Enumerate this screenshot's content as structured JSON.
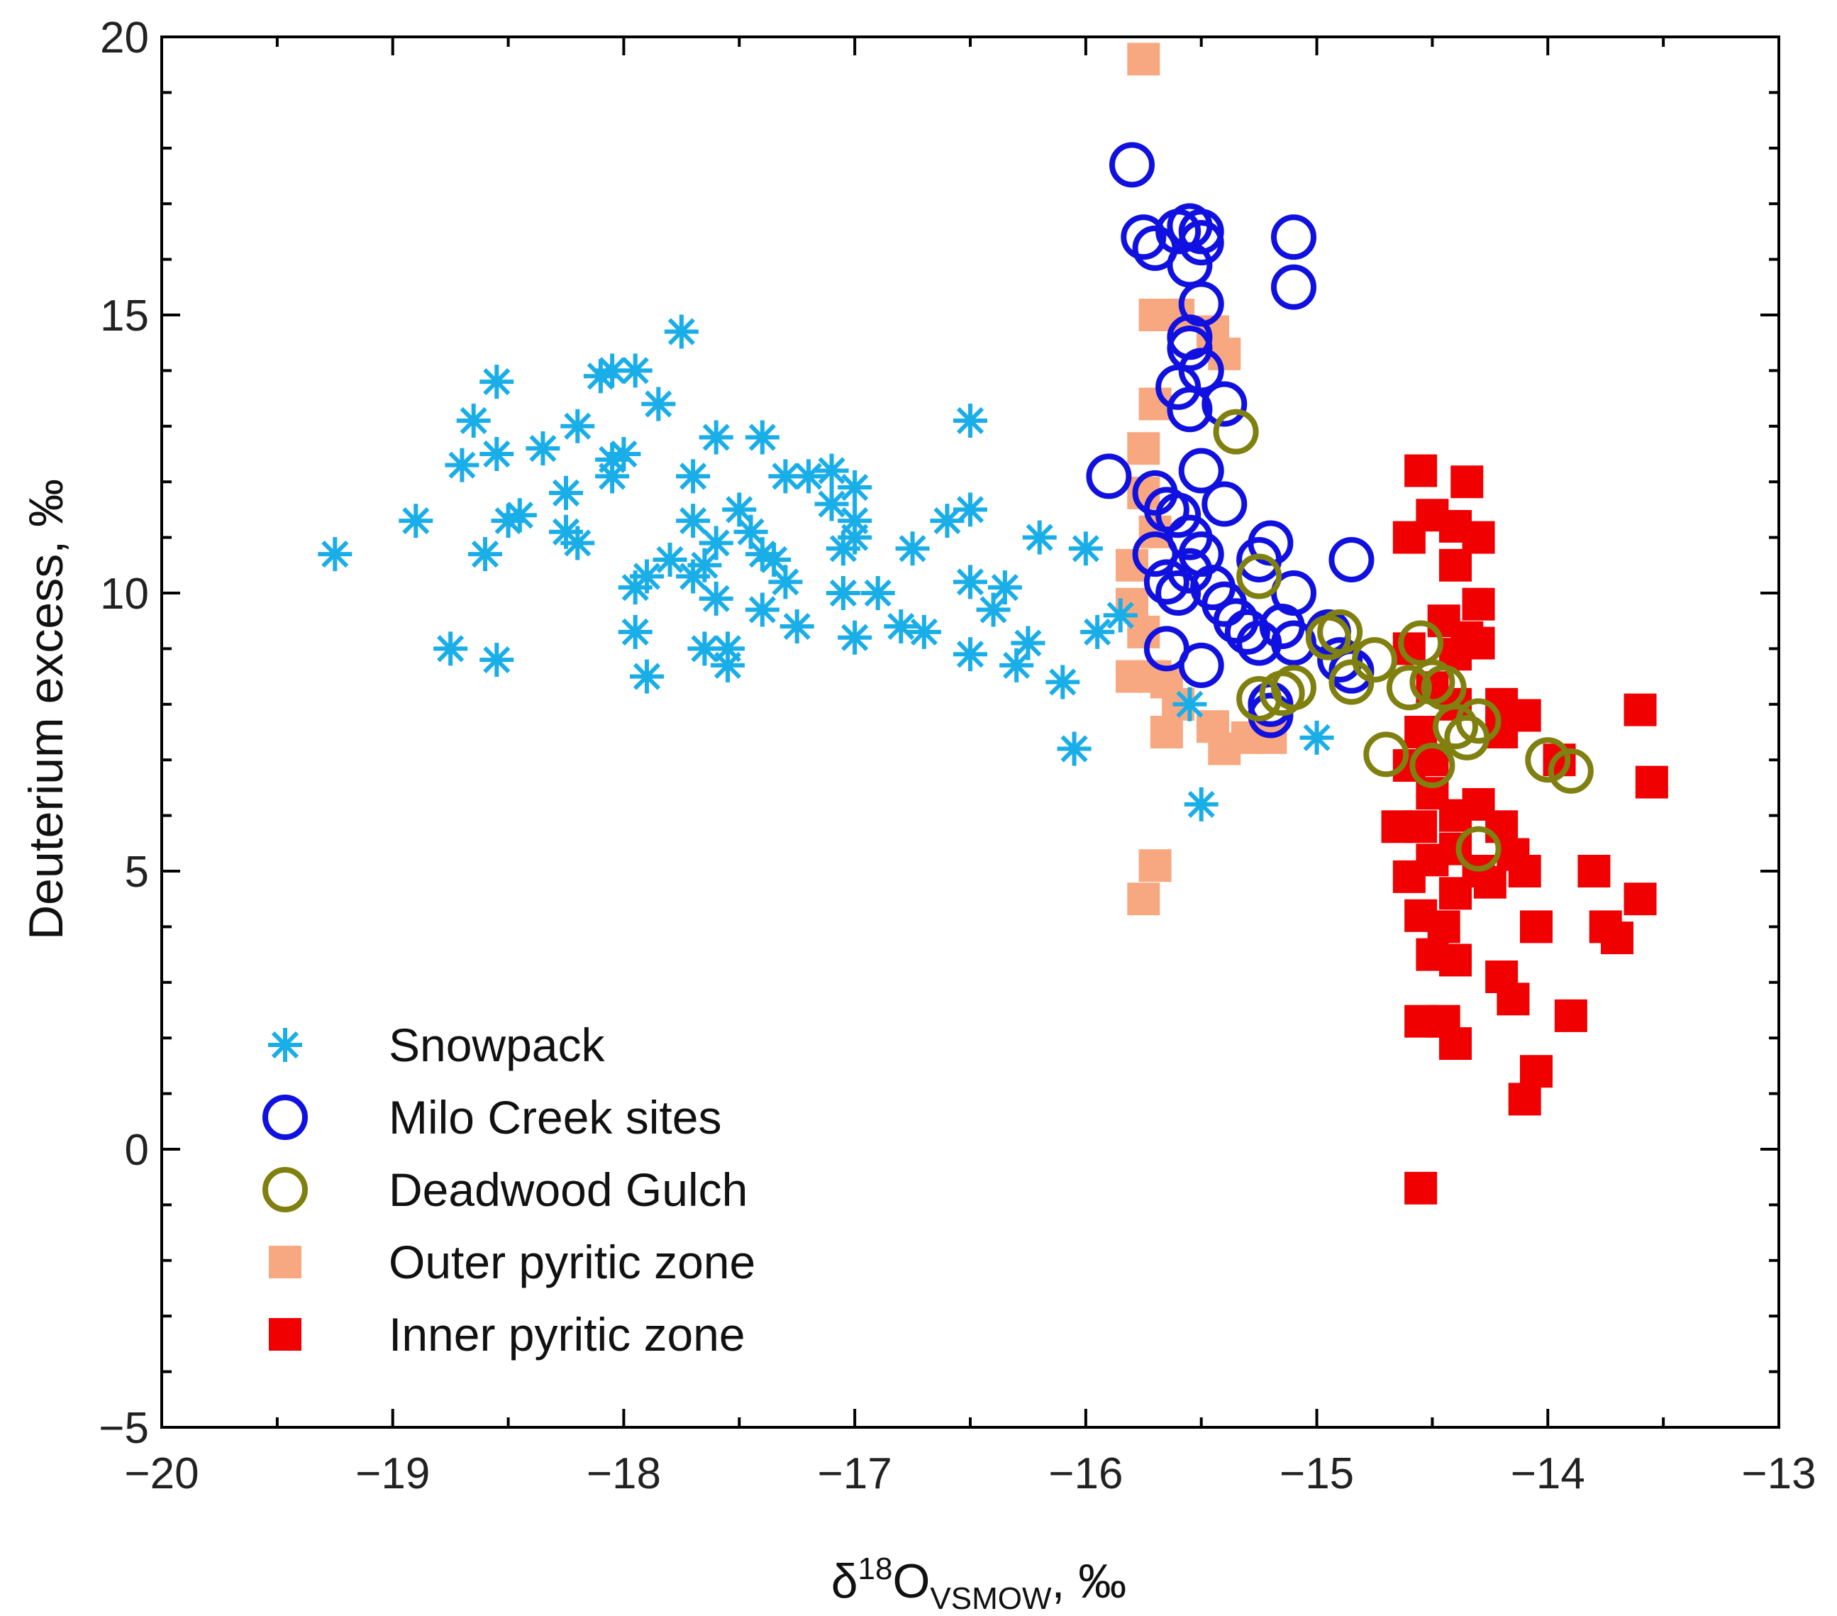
{
  "chart_data": {
    "type": "scatter",
    "title": "",
    "xlabel": {
      "prefix": "δ",
      "sup": "18",
      "main": "O",
      "sub": "VSMOW",
      "suffix": ", ‰"
    },
    "ylabel": "Deuterium excess, ‰",
    "xlim": [
      -20,
      -13
    ],
    "ylim": [
      -5,
      20
    ],
    "xticks": [
      -20,
      -19,
      -18,
      -17,
      -16,
      -15,
      -14,
      -13
    ],
    "xtick_labels": [
      "−20",
      "−19",
      "−18",
      "−17",
      "−16",
      "−15",
      "−14",
      "−13"
    ],
    "yticks": [
      -5,
      0,
      5,
      10,
      15,
      20
    ],
    "ytick_labels": [
      "−5",
      "0",
      "5",
      "10",
      "15",
      "20"
    ],
    "legend_position": "bottom-left",
    "series": [
      {
        "name": "Snowpack",
        "marker": "asterisk",
        "color": "#1aaee8",
        "points": [
          [
            -19.25,
            10.7
          ],
          [
            -18.9,
            11.3
          ],
          [
            -18.75,
            9.0
          ],
          [
            -18.65,
            13.1
          ],
          [
            -18.7,
            12.3
          ],
          [
            -18.55,
            13.8
          ],
          [
            -18.55,
            12.5
          ],
          [
            -18.6,
            10.7
          ],
          [
            -18.55,
            8.8
          ],
          [
            -18.5,
            11.3
          ],
          [
            -18.45,
            11.4
          ],
          [
            -18.35,
            12.6
          ],
          [
            -18.25,
            11.1
          ],
          [
            -18.25,
            11.8
          ],
          [
            -18.2,
            13.0
          ],
          [
            -18.2,
            10.9
          ],
          [
            -18.1,
            13.9
          ],
          [
            -18.05,
            14.0
          ],
          [
            -18.05,
            12.4
          ],
          [
            -18.05,
            12.1
          ],
          [
            -18.0,
            12.5
          ],
          [
            -17.95,
            14.0
          ],
          [
            -17.95,
            10.1
          ],
          [
            -17.95,
            9.3
          ],
          [
            -17.9,
            8.5
          ],
          [
            -17.9,
            10.3
          ],
          [
            -17.85,
            13.4
          ],
          [
            -17.8,
            10.6
          ],
          [
            -17.75,
            14.7
          ],
          [
            -17.7,
            12.1
          ],
          [
            -17.7,
            11.3
          ],
          [
            -17.7,
            10.3
          ],
          [
            -17.65,
            10.5
          ],
          [
            -17.65,
            9.0
          ],
          [
            -17.6,
            12.8
          ],
          [
            -17.6,
            9.9
          ],
          [
            -17.6,
            10.9
          ],
          [
            -17.55,
            8.7
          ],
          [
            -17.55,
            9.0
          ],
          [
            -17.5,
            11.5
          ],
          [
            -17.45,
            11.1
          ],
          [
            -17.4,
            12.8
          ],
          [
            -17.4,
            10.7
          ],
          [
            -17.4,
            9.7
          ],
          [
            -17.35,
            10.6
          ],
          [
            -17.3,
            10.2
          ],
          [
            -17.3,
            12.1
          ],
          [
            -17.25,
            9.4
          ],
          [
            -17.2,
            12.1
          ],
          [
            -17.1,
            12.2
          ],
          [
            -17.1,
            11.6
          ],
          [
            -17.05,
            10.0
          ],
          [
            -17.05,
            10.8
          ],
          [
            -17.0,
            11.9
          ],
          [
            -17.0,
            11.3
          ],
          [
            -17.0,
            11.0
          ],
          [
            -17.0,
            9.2
          ],
          [
            -16.9,
            10.0
          ],
          [
            -16.8,
            9.4
          ],
          [
            -16.75,
            10.8
          ],
          [
            -16.7,
            9.3
          ],
          [
            -16.6,
            11.3
          ],
          [
            -16.5,
            13.1
          ],
          [
            -16.5,
            11.5
          ],
          [
            -16.5,
            10.2
          ],
          [
            -16.5,
            8.9
          ],
          [
            -16.4,
            9.7
          ],
          [
            -16.35,
            10.1
          ],
          [
            -16.3,
            8.7
          ],
          [
            -16.25,
            9.1
          ],
          [
            -16.2,
            11.0
          ],
          [
            -16.1,
            8.4
          ],
          [
            -16.05,
            7.2
          ],
          [
            -16.0,
            10.8
          ],
          [
            -15.95,
            9.3
          ],
          [
            -15.85,
            9.6
          ],
          [
            -15.55,
            8.0
          ],
          [
            -15.5,
            6.2
          ],
          [
            -15.0,
            7.4
          ]
        ]
      },
      {
        "name": "Milo Creek sites",
        "marker": "circle",
        "color": "#1010e0",
        "points": [
          [
            -15.8,
            17.7
          ],
          [
            -15.75,
            16.4
          ],
          [
            -15.7,
            16.2
          ],
          [
            -15.6,
            16.5
          ],
          [
            -15.55,
            16.6
          ],
          [
            -15.5,
            16.5
          ],
          [
            -15.5,
            16.3
          ],
          [
            -15.55,
            15.9
          ],
          [
            -15.5,
            15.2
          ],
          [
            -15.55,
            14.6
          ],
          [
            -15.55,
            14.4
          ],
          [
            -15.5,
            14.0
          ],
          [
            -15.6,
            13.7
          ],
          [
            -15.55,
            13.3
          ],
          [
            -15.4,
            13.4
          ],
          [
            -15.1,
            16.4
          ],
          [
            -15.1,
            15.5
          ],
          [
            -15.9,
            12.1
          ],
          [
            -15.5,
            12.2
          ],
          [
            -15.7,
            11.8
          ],
          [
            -15.65,
            11.5
          ],
          [
            -15.6,
            11.4
          ],
          [
            -15.55,
            11.0
          ],
          [
            -15.7,
            10.7
          ],
          [
            -15.65,
            10.2
          ],
          [
            -15.6,
            10.0
          ],
          [
            -15.55,
            10.4
          ],
          [
            -15.5,
            10.7
          ],
          [
            -15.4,
            11.6
          ],
          [
            -15.45,
            10.1
          ],
          [
            -15.4,
            9.8
          ],
          [
            -15.35,
            9.5
          ],
          [
            -15.3,
            9.3
          ],
          [
            -15.25,
            9.1
          ],
          [
            -15.2,
            10.9
          ],
          [
            -15.15,
            9.4
          ],
          [
            -15.1,
            10.0
          ],
          [
            -15.1,
            9.1
          ],
          [
            -15.2,
            8.0
          ],
          [
            -15.2,
            7.8
          ],
          [
            -15.5,
            8.7
          ],
          [
            -15.65,
            9.0
          ],
          [
            -14.85,
            10.6
          ],
          [
            -14.95,
            9.3
          ],
          [
            -14.9,
            8.8
          ],
          [
            -14.85,
            8.6
          ],
          [
            -15.25,
            10.6
          ]
        ]
      },
      {
        "name": "Deadwood Gulch",
        "marker": "circle",
        "color": "#808010",
        "points": [
          [
            -15.35,
            12.9
          ],
          [
            -15.25,
            10.3
          ],
          [
            -15.25,
            8.1
          ],
          [
            -15.15,
            8.2
          ],
          [
            -15.1,
            8.3
          ],
          [
            -14.95,
            9.2
          ],
          [
            -14.9,
            9.3
          ],
          [
            -14.85,
            8.4
          ],
          [
            -14.75,
            8.8
          ],
          [
            -14.7,
            7.1
          ],
          [
            -14.6,
            8.3
          ],
          [
            -14.55,
            9.1
          ],
          [
            -14.5,
            8.4
          ],
          [
            -14.45,
            8.3
          ],
          [
            -14.4,
            7.6
          ],
          [
            -14.35,
            7.4
          ],
          [
            -14.3,
            7.7
          ],
          [
            -14.5,
            6.9
          ],
          [
            -14.3,
            5.4
          ],
          [
            -14.0,
            7.0
          ],
          [
            -13.9,
            6.8
          ]
        ]
      },
      {
        "name": "Outer pyritic zone",
        "marker": "square",
        "color": "#f8a880",
        "points": [
          [
            -15.75,
            19.6
          ],
          [
            -15.7,
            15.0
          ],
          [
            -15.6,
            15.0
          ],
          [
            -15.45,
            14.7
          ],
          [
            -15.4,
            14.3
          ],
          [
            -15.75,
            12.6
          ],
          [
            -15.7,
            13.4
          ],
          [
            -15.75,
            11.8
          ],
          [
            -15.7,
            11.1
          ],
          [
            -15.8,
            10.5
          ],
          [
            -15.8,
            9.8
          ],
          [
            -15.75,
            9.3
          ],
          [
            -15.8,
            8.5
          ],
          [
            -15.7,
            8.5
          ],
          [
            -15.65,
            8.4
          ],
          [
            -15.6,
            8.0
          ],
          [
            -15.65,
            7.5
          ],
          [
            -15.45,
            7.6
          ],
          [
            -15.4,
            7.2
          ],
          [
            -15.3,
            7.4
          ],
          [
            -15.2,
            7.4
          ],
          [
            -15.7,
            5.1
          ],
          [
            -15.75,
            4.5
          ]
        ]
      },
      {
        "name": "Inner pyritic zone",
        "marker": "square",
        "color": "#f00000",
        "points": [
          [
            -14.55,
            12.2
          ],
          [
            -14.35,
            12.0
          ],
          [
            -14.5,
            11.4
          ],
          [
            -14.4,
            11.2
          ],
          [
            -14.6,
            11.0
          ],
          [
            -14.3,
            11.0
          ],
          [
            -14.4,
            10.5
          ],
          [
            -14.3,
            9.8
          ],
          [
            -14.45,
            9.5
          ],
          [
            -14.35,
            9.2
          ],
          [
            -14.6,
            9.0
          ],
          [
            -14.4,
            8.9
          ],
          [
            -14.3,
            9.1
          ],
          [
            -14.5,
            8.3
          ],
          [
            -14.4,
            8.0
          ],
          [
            -14.2,
            8.0
          ],
          [
            -14.1,
            7.8
          ],
          [
            -14.2,
            7.5
          ],
          [
            -14.55,
            7.5
          ],
          [
            -14.5,
            7.0
          ],
          [
            -14.6,
            6.9
          ],
          [
            -14.5,
            6.4
          ],
          [
            -14.4,
            6.0
          ],
          [
            -14.3,
            6.2
          ],
          [
            -14.2,
            5.8
          ],
          [
            -14.55,
            5.8
          ],
          [
            -14.65,
            5.8
          ],
          [
            -14.4,
            5.4
          ],
          [
            -14.5,
            5.2
          ],
          [
            -14.3,
            5.0
          ],
          [
            -14.15,
            5.3
          ],
          [
            -14.1,
            5.0
          ],
          [
            -14.6,
            4.9
          ],
          [
            -14.4,
            4.6
          ],
          [
            -14.25,
            4.8
          ],
          [
            -14.55,
            4.2
          ],
          [
            -14.45,
            4.0
          ],
          [
            -14.5,
            3.5
          ],
          [
            -14.4,
            3.4
          ],
          [
            -14.05,
            4.0
          ],
          [
            -13.75,
            4.0
          ],
          [
            -13.7,
            3.8
          ],
          [
            -13.6,
            4.5
          ],
          [
            -13.8,
            5.0
          ],
          [
            -14.2,
            3.1
          ],
          [
            -14.15,
            2.7
          ],
          [
            -14.55,
            2.3
          ],
          [
            -14.45,
            2.3
          ],
          [
            -14.4,
            1.9
          ],
          [
            -13.9,
            2.4
          ],
          [
            -14.05,
            1.4
          ],
          [
            -14.1,
            0.9
          ],
          [
            -14.55,
            -0.7
          ],
          [
            -13.6,
            7.9
          ],
          [
            -13.55,
            6.6
          ],
          [
            -13.95,
            7.0
          ]
        ]
      }
    ]
  }
}
